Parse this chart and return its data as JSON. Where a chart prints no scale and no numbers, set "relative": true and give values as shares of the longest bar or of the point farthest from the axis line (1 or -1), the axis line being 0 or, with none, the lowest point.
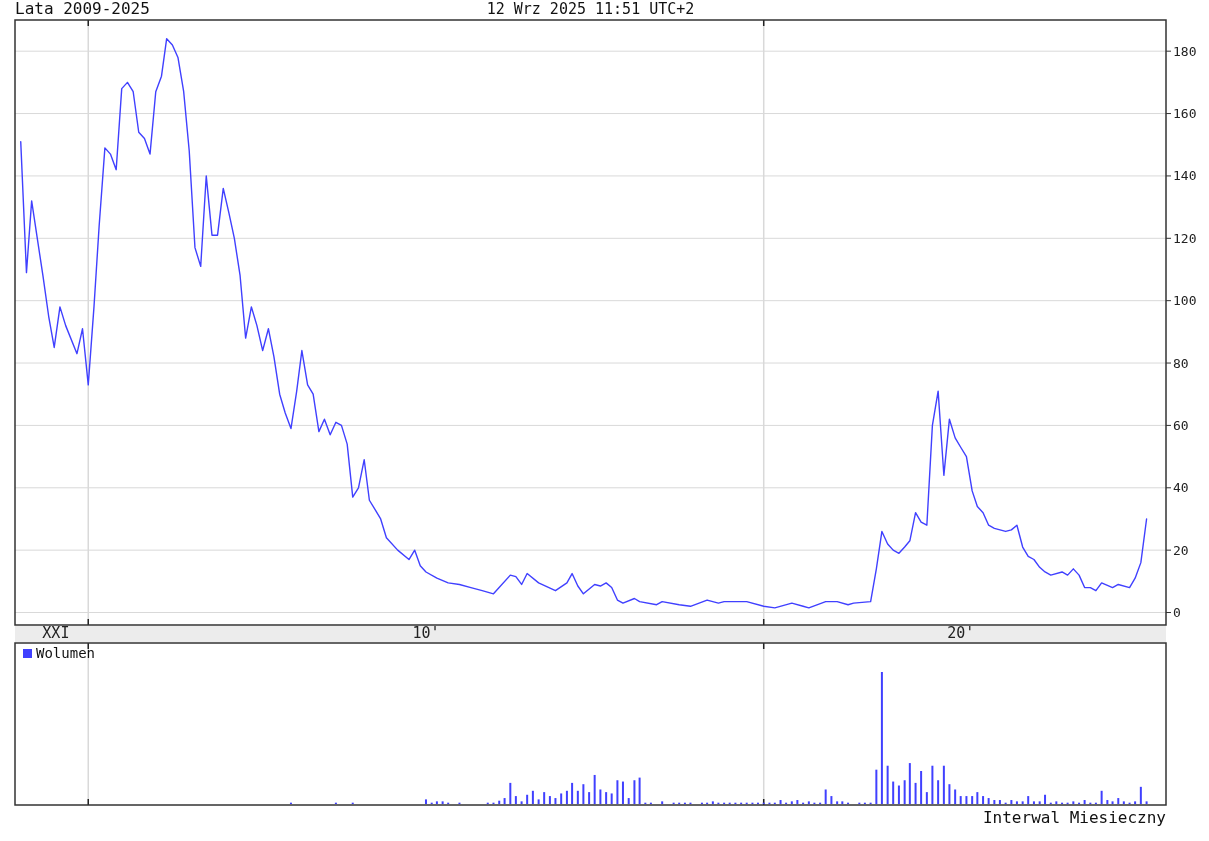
{
  "chart_data": [
    {
      "type": "line",
      "title": "Lata 2009-2025",
      "subtitle": "12 Wrz 2025 11:51 UTC+2",
      "color": "#4040ff",
      "x": [
        "2009-01",
        "2009-02",
        "2009-03",
        "2009-05",
        "2009-06",
        "2009-07",
        "2009-08",
        "2009-09",
        "2009-11",
        "2009-12",
        "2010-01",
        "2010-02",
        "2010-03",
        "2010-04",
        "2010-05",
        "2010-06",
        "2010-07",
        "2010-08",
        "2010-09",
        "2010-10",
        "2010-11",
        "2010-12",
        "2011-01",
        "2011-02",
        "2011-03",
        "2011-04",
        "2011-05",
        "2011-06",
        "2011-07",
        "2011-08",
        "2011-09",
        "2011-10",
        "2011-11",
        "2011-12",
        "2012-01",
        "2012-02",
        "2012-03",
        "2012-04",
        "2012-05",
        "2012-06",
        "2012-07",
        "2012-08",
        "2012-09",
        "2012-10",
        "2012-11",
        "2012-12",
        "2013-01",
        "2013-02",
        "2013-03",
        "2013-04",
        "2013-05",
        "2013-06",
        "2013-07",
        "2013-08",
        "2013-09",
        "2013-10",
        "2013-11",
        "2013-12",
        "2014-01",
        "2014-02",
        "2014-03",
        "2014-04",
        "2014-05",
        "2014-06",
        "2014-08",
        "2014-10",
        "2014-11",
        "2014-12",
        "2015-01",
        "2015-03",
        "2015-05",
        "2015-07",
        "2015-09",
        "2015-11",
        "2016-01",
        "2016-04",
        "2016-05",
        "2016-06",
        "2016-07",
        "2016-09",
        "2016-12",
        "2017-02",
        "2017-03",
        "2017-04",
        "2017-05",
        "2017-07",
        "2017-08",
        "2017-09",
        "2017-10",
        "2017-11",
        "2017-12",
        "2018-02",
        "2018-03",
        "2018-06",
        "2018-07",
        "2018-10",
        "2018-12",
        "2019-03",
        "2019-05",
        "2019-06",
        "2019-10",
        "2020-01",
        "2020-03",
        "2020-06",
        "2020-08",
        "2020-09",
        "2020-12",
        "2021-02",
        "2021-04",
        "2021-05",
        "2021-08",
        "2021-09",
        "2021-10",
        "2021-11",
        "2021-12",
        "2022-01",
        "2022-02",
        "2022-03",
        "2022-04",
        "2022-05",
        "2022-06",
        "2022-07",
        "2022-08",
        "2022-09",
        "2022-10",
        "2022-11",
        "2022-12",
        "2023-01",
        "2023-02",
        "2023-03",
        "2023-04",
        "2023-05",
        "2023-06",
        "2023-08",
        "2023-09",
        "2023-10",
        "2023-11",
        "2023-12",
        "2024-01",
        "2024-02",
        "2024-03",
        "2024-04",
        "2024-06",
        "2024-07",
        "2024-08",
        "2024-09",
        "2024-10",
        "2024-11",
        "2024-12",
        "2025-01",
        "2025-03",
        "2025-04",
        "2025-06",
        "2025-07",
        "2025-08",
        "2025-09"
      ],
      "values": [
        151,
        109,
        132,
        108,
        95,
        85,
        98,
        92,
        83,
        91,
        73,
        98,
        124,
        149,
        147,
        142,
        168,
        170,
        167,
        154,
        152,
        147,
        167,
        172,
        184,
        182,
        178,
        167,
        148,
        117,
        111,
        140,
        121,
        121,
        136,
        128,
        120,
        108,
        88,
        98,
        92,
        84,
        91,
        82,
        70,
        64,
        59,
        71,
        84,
        73,
        70,
        58,
        62,
        57,
        61,
        60,
        54,
        37,
        40,
        49,
        36,
        33,
        30,
        24,
        20,
        17,
        20,
        15,
        13,
        11,
        9.5,
        9,
        8,
        7,
        6,
        12,
        11.5,
        9,
        12.5,
        9.5,
        7,
        9.5,
        12.5,
        8.5,
        6,
        9,
        8.5,
        9.5,
        8,
        4,
        3,
        4.5,
        3.5,
        2.5,
        3.5,
        2.5,
        2,
        4,
        3,
        3.5,
        3.5,
        2,
        1.5,
        3,
        2,
        1.5,
        3.5,
        3.5,
        2.5,
        3,
        3.5,
        14,
        26,
        22,
        20,
        19,
        21,
        23,
        32,
        29,
        28,
        60,
        71,
        44,
        62,
        56,
        53,
        50,
        39,
        34,
        32,
        28,
        27,
        26,
        26.5,
        28,
        21,
        18,
        17,
        14.5,
        13,
        12,
        13,
        12,
        14,
        12,
        8,
        8,
        7,
        9.5,
        8,
        9,
        8,
        11,
        16,
        30
      ],
      "xlim": [
        "2008-12-01",
        "2025-12-15"
      ],
      "xticks": [
        {
          "value": "2009-07-10",
          "label": "XXI"
        },
        {
          "value": "2010-01",
          "label": null
        },
        {
          "value": "2015-01",
          "label": "10'"
        },
        {
          "value": "2020-01",
          "label": null
        },
        {
          "value": "2022-12",
          "label": "20'"
        }
      ],
      "ylim": [
        -4,
        190
      ],
      "yticks": [
        0,
        20,
        40,
        60,
        80,
        100,
        120,
        140,
        160,
        180
      ],
      "grid": true
    },
    {
      "type": "bar",
      "relative": true,
      "legend": "top left",
      "tick_labels": false,
      "grid": "x",
      "xlim": [
        "2008-12-01",
        "2025-12-15"
      ],
      "xticks": [
        {
          "value": "2010-01",
          "label": null
        },
        {
          "value": "2020-01",
          "label": null
        }
      ],
      "annotations": [
        "Interwal Miesieczny"
      ],
      "series": [
        {
          "name": "Wolumen",
          "color": "#4040ff",
          "x": [
            "2013-01",
            "2013-09",
            "2013-12",
            "2015-01",
            "2015-02",
            "2015-03",
            "2015-04",
            "2015-05",
            "2015-07",
            "2015-12",
            "2016-01",
            "2016-02",
            "2016-03",
            "2016-04",
            "2016-05",
            "2016-06",
            "2016-07",
            "2016-08",
            "2016-09",
            "2016-10",
            "2016-11",
            "2016-12",
            "2017-01",
            "2017-02",
            "2017-03",
            "2017-04",
            "2017-05",
            "2017-06",
            "2017-07",
            "2017-08",
            "2017-09",
            "2017-10",
            "2017-11",
            "2017-12",
            "2018-01",
            "2018-02",
            "2018-03",
            "2018-04",
            "2018-05",
            "2018-07",
            "2018-09",
            "2018-10",
            "2018-11",
            "2018-12",
            "2019-02",
            "2019-03",
            "2019-04",
            "2019-05",
            "2019-06",
            "2019-07",
            "2019-08",
            "2019-09",
            "2019-10",
            "2019-11",
            "2019-12",
            "2020-01",
            "2020-02",
            "2020-03",
            "2020-04",
            "2020-05",
            "2020-06",
            "2020-07",
            "2020-08",
            "2020-09",
            "2020-10",
            "2020-11",
            "2020-12",
            "2021-01",
            "2021-02",
            "2021-03",
            "2021-04",
            "2021-06",
            "2021-07",
            "2021-08",
            "2021-09",
            "2021-10",
            "2021-11",
            "2021-12",
            "2022-01",
            "2022-02",
            "2022-03",
            "2022-04",
            "2022-05",
            "2022-06",
            "2022-07",
            "2022-08",
            "2022-09",
            "2022-10",
            "2022-11",
            "2022-12",
            "2023-01",
            "2023-02",
            "2023-03",
            "2023-04",
            "2023-05",
            "2023-06",
            "2023-07",
            "2023-08",
            "2023-09",
            "2023-10",
            "2023-11",
            "2023-12",
            "2024-01",
            "2024-02",
            "2024-03",
            "2024-04",
            "2024-05",
            "2024-06",
            "2024-07",
            "2024-08",
            "2024-09",
            "2024-10",
            "2024-11",
            "2024-12",
            "2025-01",
            "2025-02",
            "2025-03",
            "2025-04",
            "2025-05",
            "2025-06",
            "2025-07",
            "2025-08",
            "2025-09"
          ],
          "values": [
            0.01,
            0.01,
            0.01,
            0.035,
            0.01,
            0.02,
            0.02,
            0.01,
            0.01,
            0.01,
            0.01,
            0.025,
            0.045,
            0.16,
            0.06,
            0.02,
            0.07,
            0.1,
            0.035,
            0.09,
            0.06,
            0.045,
            0.08,
            0.1,
            0.16,
            0.1,
            0.15,
            0.09,
            0.22,
            0.11,
            0.09,
            0.08,
            0.18,
            0.17,
            0.045,
            0.18,
            0.2,
            0.01,
            0.01,
            0.02,
            0.01,
            0.01,
            0.01,
            0.01,
            0.01,
            0.01,
            0.02,
            0.01,
            0.01,
            0.01,
            0.01,
            0.01,
            0.01,
            0.01,
            0.01,
            0.01,
            0.01,
            0.01,
            0.03,
            0.01,
            0.02,
            0.03,
            0.01,
            0.02,
            0.01,
            0.01,
            0.11,
            0.06,
            0.02,
            0.02,
            0.01,
            0.01,
            0.01,
            0.01,
            0.26,
            1,
            0.29,
            0.17,
            0.14,
            0.18,
            0.31,
            0.16,
            0.25,
            0.09,
            0.29,
            0.18,
            0.29,
            0.15,
            0.11,
            0.06,
            0.06,
            0.06,
            0.09,
            0.06,
            0.045,
            0.03,
            0.03,
            0.01,
            0.03,
            0.02,
            0.02,
            0.06,
            0.02,
            0.02,
            0.07,
            0.01,
            0.02,
            0.01,
            0.01,
            0.02,
            0.01,
            0.03,
            0.01,
            0.01,
            0.1,
            0.03,
            0.02,
            0.045,
            0.02,
            0.01,
            0.02,
            0.13,
            0.02
          ]
        }
      ]
    }
  ]
}
